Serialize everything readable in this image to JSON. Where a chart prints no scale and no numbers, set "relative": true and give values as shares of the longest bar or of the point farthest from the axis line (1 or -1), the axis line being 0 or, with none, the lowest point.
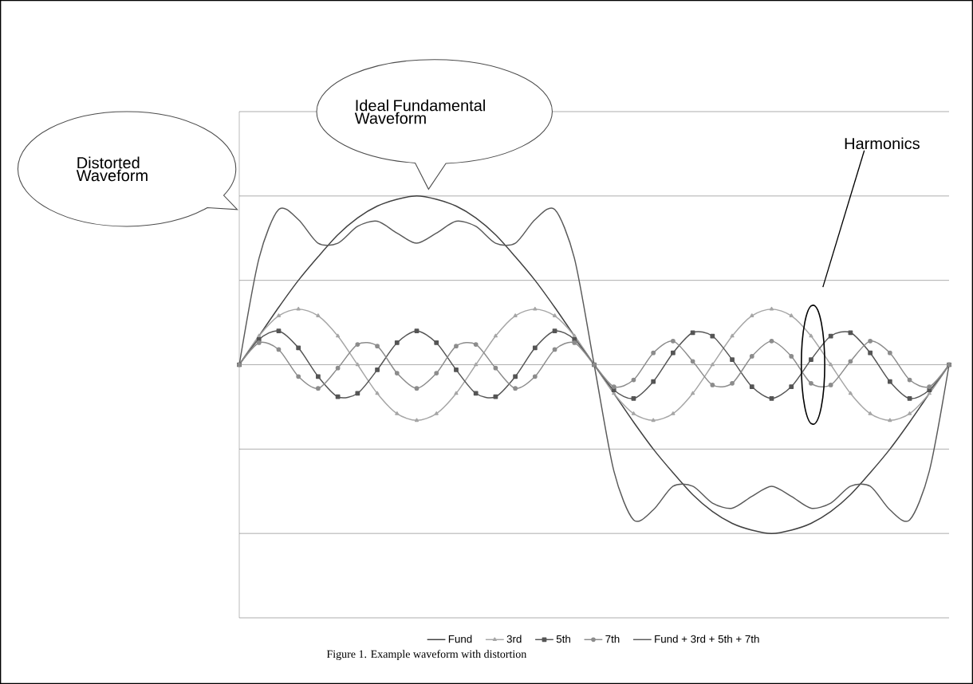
{
  "chart_data": {
    "type": "line",
    "relative": true,
    "grid": "y",
    "legend": "bottom",
    "line_style": "solid",
    "categories": [
      null,
      null,
      null,
      null,
      null,
      null,
      null,
      null,
      null,
      null,
      null,
      null,
      null,
      null,
      null,
      null,
      null,
      null,
      null,
      null,
      null,
      null,
      null,
      null,
      null,
      null,
      null,
      null,
      null,
      null,
      null,
      null,
      null,
      null,
      null,
      null,
      null
    ],
    "series": [
      {
        "name": "Fund",
        "color": "#404040",
        "marker": "none",
        "values": [
          0,
          0.17,
          0.34,
          0.5,
          0.64,
          0.77,
          0.87,
          0.94,
          0.98,
          1,
          0.98,
          0.94,
          0.87,
          0.77,
          0.64,
          0.5,
          0.34,
          0.17,
          0,
          -0.17,
          -0.34,
          -0.5,
          -0.64,
          -0.77,
          -0.87,
          -0.94,
          -0.98,
          -1,
          -0.98,
          -0.94,
          -0.87,
          -0.77,
          -0.64,
          -0.5,
          -0.34,
          -0.17,
          0
        ]
      },
      {
        "name": "3rd",
        "color": "#a6a6a6",
        "marker": "triangle",
        "values": [
          0,
          0.17,
          0.29,
          0.33,
          0.29,
          0.17,
          0,
          -0.17,
          -0.29,
          -0.33,
          -0.29,
          -0.17,
          0,
          0.17,
          0.29,
          0.33,
          0.29,
          0.17,
          0,
          -0.17,
          -0.29,
          -0.33,
          -0.29,
          -0.17,
          0,
          0.17,
          0.29,
          0.33,
          0.29,
          0.17,
          0,
          -0.17,
          -0.29,
          -0.33,
          -0.29,
          -0.17,
          0
        ]
      },
      {
        "name": "5th",
        "color": "#555555",
        "marker": "square",
        "values": [
          0,
          0.15,
          0.2,
          0.1,
          -0.07,
          -0.19,
          -0.17,
          -0.03,
          0.13,
          0.2,
          0.13,
          -0.03,
          -0.17,
          -0.19,
          -0.07,
          0.1,
          0.2,
          0.15,
          0,
          -0.15,
          -0.2,
          -0.1,
          0.07,
          0.19,
          0.17,
          0.03,
          -0.13,
          -0.2,
          -0.13,
          0.03,
          0.17,
          0.19,
          0.07,
          -0.1,
          -0.2,
          -0.15,
          0
        ]
      },
      {
        "name": "7th",
        "color": "#8c8c8c",
        "marker": "circle",
        "values": [
          0,
          0.13,
          0.09,
          -0.07,
          -0.14,
          -0.02,
          0.12,
          0.11,
          -0.05,
          -0.14,
          -0.05,
          0.11,
          0.12,
          -0.02,
          -0.14,
          -0.07,
          0.09,
          0.13,
          0,
          -0.13,
          -0.09,
          0.07,
          0.14,
          0.02,
          -0.12,
          -0.11,
          0.05,
          0.14,
          0.05,
          -0.11,
          -0.12,
          0.02,
          0.14,
          0.07,
          -0.09,
          -0.13,
          0
        ]
      },
      {
        "name": "Fund + 3rd + 5th + 7th",
        "color": "#5a5a5a",
        "marker": "none",
        "values": [
          0,
          0.63,
          0.92,
          0.86,
          0.72,
          0.72,
          0.82,
          0.85,
          0.78,
          0.72,
          0.78,
          0.85,
          0.82,
          0.72,
          0.72,
          0.86,
          0.92,
          0.63,
          0,
          -0.63,
          -0.92,
          -0.86,
          -0.72,
          -0.72,
          -0.82,
          -0.85,
          -0.78,
          -0.72,
          -0.78,
          -0.85,
          -0.82,
          -0.72,
          -0.72,
          -0.86,
          -0.92,
          -0.63,
          0
        ]
      }
    ],
    "annotations": [
      "Ideal Fundamental Waveform",
      "Distorted Waveform",
      "Harmonics",
      "Figure 1. Example waveform with distortion"
    ]
  }
}
